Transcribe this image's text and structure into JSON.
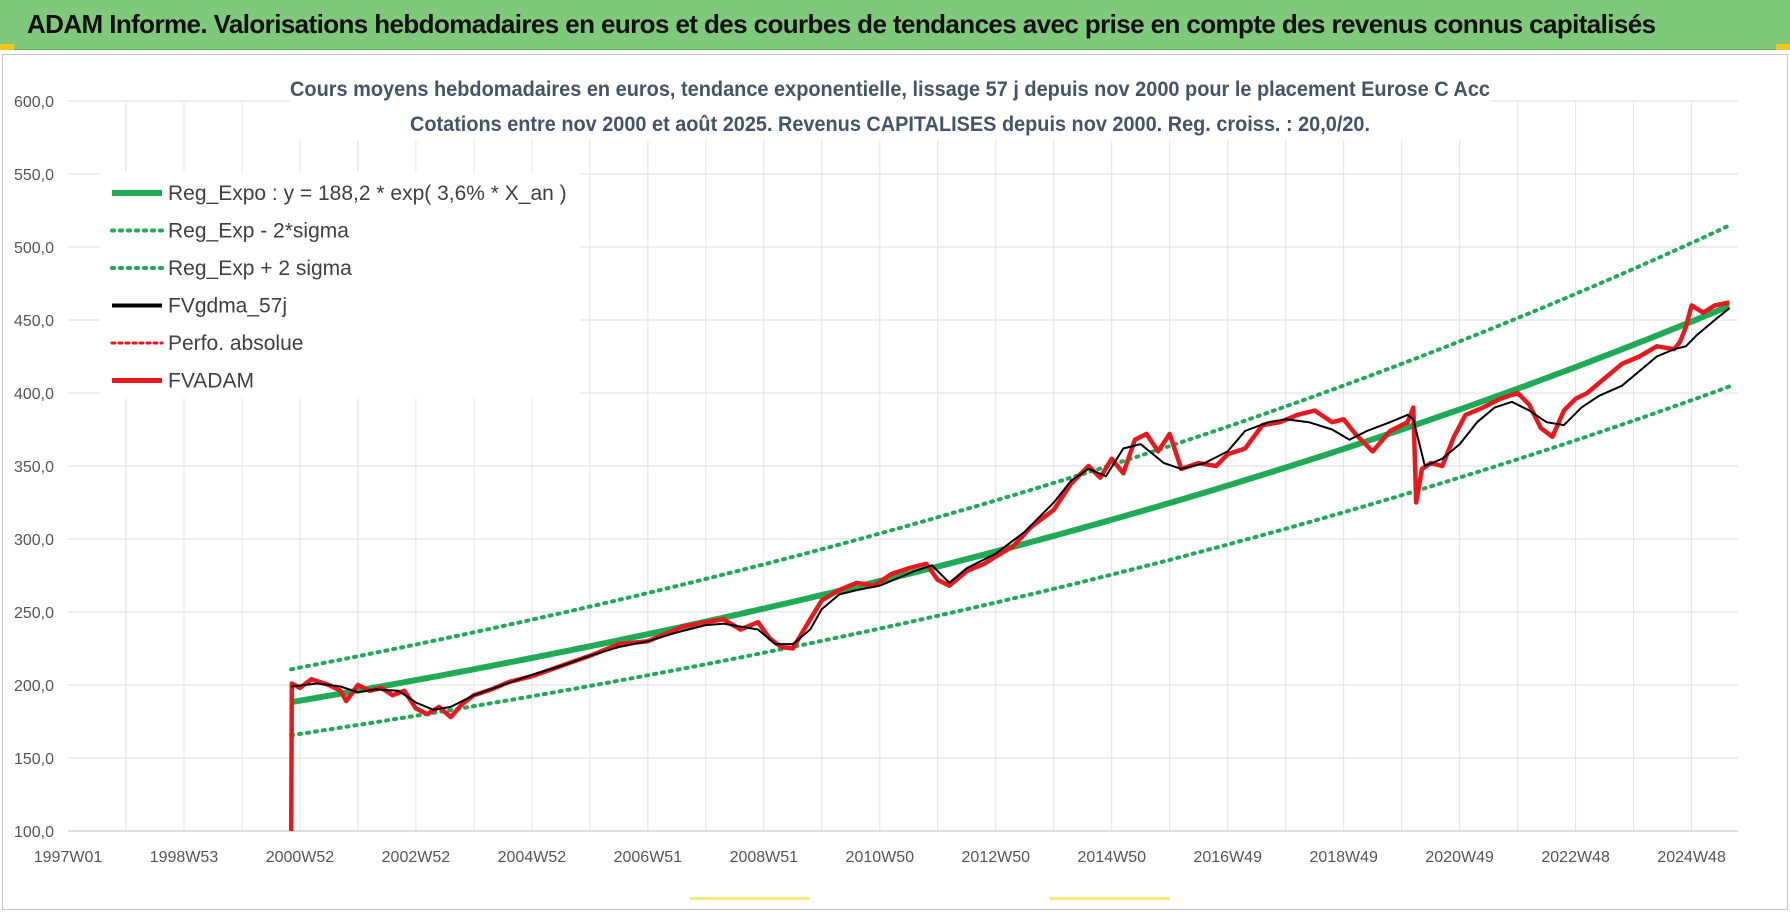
{
  "banner": {
    "title": "ADAM Informe. Valorisations hebdomadaires en euros et des courbes de tendances avec prise en compte des revenus connus capitalisés"
  },
  "colors": {
    "banner_bg": "#7fc97a",
    "reg_expo": "#1faa55",
    "sigma_bands": "#1faa55",
    "fvgdma": "#000000",
    "perfo": "#e8191c",
    "fvadam": "#e8191c",
    "grid": "#dcdcdc",
    "title": "#44546a"
  },
  "chart_data": {
    "type": "line",
    "title": "Cours moyens hebdomadaires en euros, tendance exponentielle, lissage 57 j depuis nov 2000 pour le placement Eurose C Acc",
    "subtitle": "Cotations entre nov 2000 et août 2025. Revenus CAPITALISES depuis nov 2000. Reg. croiss. : 20,0/20.",
    "xlabel": "",
    "ylabel": "",
    "ylim": [
      100,
      600
    ],
    "xlim": [
      1997.0,
      2025.8
    ],
    "y_ticks": [
      "100,0",
      "150,0",
      "200,0",
      "250,0",
      "300,0",
      "350,0",
      "400,0",
      "450,0",
      "500,0",
      "550,0",
      "600,0"
    ],
    "x_ticks": [
      {
        "label": "1997W01",
        "x": 1997.0
      },
      {
        "label": "1998W53",
        "x": 1999.0
      },
      {
        "label": "2000W52",
        "x": 2001.0
      },
      {
        "label": "2002W52",
        "x": 2003.0
      },
      {
        "label": "2004W52",
        "x": 2005.0
      },
      {
        "label": "2006W51",
        "x": 2007.0
      },
      {
        "label": "2008W51",
        "x": 2009.0
      },
      {
        "label": "2010W50",
        "x": 2011.0
      },
      {
        "label": "2012W50",
        "x": 2013.0
      },
      {
        "label": "2014W50",
        "x": 2015.0
      },
      {
        "label": "2016W49",
        "x": 2017.0
      },
      {
        "label": "2018W49",
        "x": 2019.0
      },
      {
        "label": "2020W49",
        "x": 2021.0
      },
      {
        "label": "2022W48",
        "x": 2023.0
      },
      {
        "label": "2024W48",
        "x": 2025.0
      }
    ],
    "grid": true,
    "legend_position": "top-left",
    "regression": {
      "a": 188.2,
      "rate": 0.036,
      "x0": 2000.85,
      "x_end": 2025.65,
      "sigma_factor": 0.12
    },
    "series": [
      {
        "name": "Reg_Expo : y = 188,2 * exp( 3,6% *  X_an )",
        "style": "solid-thick",
        "color": "#1faa55"
      },
      {
        "name": "Reg_Exp - 2*sigma",
        "style": "dotted",
        "color": "#1faa55"
      },
      {
        "name": "Reg_Exp + 2 sigma",
        "style": "dotted",
        "color": "#1faa55"
      },
      {
        "name": "FVgdma_57j",
        "style": "solid",
        "color": "#000000",
        "x": [
          2000.85,
          2001.3,
          2001.7,
          2002.0,
          2002.3,
          2002.7,
          2003.0,
          2003.3,
          2003.6,
          2004.0,
          2004.5,
          2005.0,
          2005.5,
          2006.0,
          2006.5,
          2007.0,
          2007.5,
          2008.0,
          2008.3,
          2008.6,
          2008.9,
          2009.2,
          2009.5,
          2009.8,
          2010.0,
          2010.3,
          2010.6,
          2011.0,
          2011.3,
          2011.6,
          2011.9,
          2012.2,
          2012.5,
          2013.0,
          2013.5,
          2014.0,
          2014.3,
          2014.6,
          2014.9,
          2015.2,
          2015.5,
          2015.9,
          2016.2,
          2016.6,
          2017.0,
          2017.3,
          2017.7,
          2018.0,
          2018.4,
          2018.8,
          2019.1,
          2019.4,
          2019.8,
          2020.1,
          2020.2,
          2020.4,
          2020.7,
          2021.0,
          2021.3,
          2021.6,
          2021.9,
          2022.2,
          2022.5,
          2022.8,
          2023.1,
          2023.4,
          2023.8,
          2024.1,
          2024.4,
          2024.7,
          2024.9,
          2025.1,
          2025.4,
          2025.65
        ],
        "y": [
          199,
          201,
          199,
          195,
          197,
          196,
          188,
          183,
          185,
          193,
          200,
          207,
          213,
          220,
          226,
          230,
          236,
          241,
          242,
          240,
          238,
          228,
          228,
          238,
          252,
          262,
          265,
          268,
          273,
          278,
          282,
          270,
          280,
          290,
          305,
          325,
          340,
          348,
          343,
          362,
          365,
          352,
          348,
          352,
          360,
          374,
          380,
          382,
          380,
          375,
          368,
          374,
          380,
          385,
          382,
          350,
          355,
          365,
          380,
          390,
          394,
          388,
          380,
          378,
          390,
          398,
          405,
          415,
          425,
          430,
          432,
          440,
          450,
          458
        ]
      },
      {
        "name": "Perfo. absolue",
        "style": "dotted",
        "color": "#e8191c"
      },
      {
        "name": "FVADAM",
        "style": "solid-thick",
        "color": "#e8191c",
        "x": [
          2000.85,
          2000.86,
          2001.0,
          2001.2,
          2001.5,
          2001.7,
          2001.8,
          2002.0,
          2002.2,
          2002.4,
          2002.6,
          2002.8,
          2003.0,
          2003.2,
          2003.4,
          2003.6,
          2003.8,
          2004.0,
          2004.3,
          2004.6,
          2005.0,
          2005.5,
          2006.0,
          2006.5,
          2007.0,
          2007.3,
          2007.6,
          2008.0,
          2008.3,
          2008.6,
          2008.9,
          2009.1,
          2009.3,
          2009.5,
          2009.8,
          2010.0,
          2010.3,
          2010.6,
          2010.9,
          2011.2,
          2011.5,
          2011.8,
          2012.0,
          2012.2,
          2012.5,
          2012.8,
          2013.0,
          2013.3,
          2013.6,
          2014.0,
          2014.3,
          2014.6,
          2014.8,
          2015.0,
          2015.2,
          2015.4,
          2015.6,
          2015.8,
          2016.0,
          2016.2,
          2016.5,
          2016.8,
          2017.0,
          2017.3,
          2017.6,
          2017.9,
          2018.2,
          2018.5,
          2018.8,
          2019.0,
          2019.2,
          2019.5,
          2019.8,
          2020.1,
          2020.2,
          2020.25,
          2020.35,
          2020.5,
          2020.7,
          2020.9,
          2021.1,
          2021.4,
          2021.7,
          2022.0,
          2022.2,
          2022.4,
          2022.6,
          2022.8,
          2023.0,
          2023.2,
          2023.5,
          2023.8,
          2024.1,
          2024.4,
          2024.7,
          2024.8,
          2024.9,
          2025.0,
          2025.2,
          2025.4,
          2025.65
        ],
        "y": [
          100,
          201,
          198,
          204,
          200,
          196,
          189,
          200,
          196,
          198,
          193,
          196,
          184,
          180,
          185,
          178,
          187,
          193,
          197,
          202,
          206,
          213,
          220,
          228,
          230,
          235,
          240,
          243,
          245,
          238,
          243,
          232,
          226,
          225,
          245,
          258,
          265,
          270,
          268,
          276,
          280,
          283,
          272,
          268,
          278,
          283,
          288,
          295,
          308,
          320,
          338,
          350,
          342,
          355,
          345,
          368,
          372,
          360,
          372,
          348,
          352,
          350,
          358,
          362,
          378,
          380,
          385,
          388,
          380,
          382,
          372,
          360,
          374,
          380,
          390,
          325,
          348,
          352,
          350,
          370,
          385,
          390,
          396,
          400,
          392,
          376,
          370,
          388,
          396,
          400,
          410,
          420,
          425,
          432,
          430,
          435,
          445,
          460,
          455,
          460,
          462
        ]
      }
    ]
  }
}
